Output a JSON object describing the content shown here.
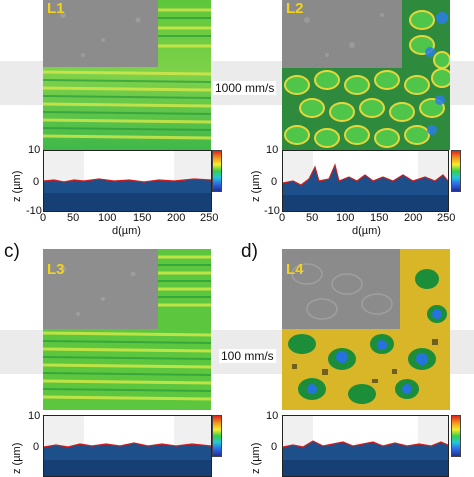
{
  "panels": [
    {
      "letter": "",
      "label": "L1"
    },
    {
      "letter": "",
      "label": "L2"
    },
    {
      "letter": "c)",
      "label": "L3"
    },
    {
      "letter": "d)",
      "label": "L4"
    }
  ],
  "speeds": {
    "top": "1000 mm/s",
    "bottom": "100 mm/s"
  },
  "axes": {
    "ylabel": "z (µm)",
    "xlabel": "d(µm)",
    "yticks": [
      "10",
      "0",
      "-10"
    ],
    "xticks": [
      "0",
      "50",
      "100",
      "150",
      "200",
      "250"
    ],
    "yticks_partial": [
      "10",
      "0",
      "-10"
    ]
  },
  "colors": {
    "profile_line": "#d01c1c",
    "surface_low": "#1d2f9a",
    "surface_high": "#e3231c"
  }
}
